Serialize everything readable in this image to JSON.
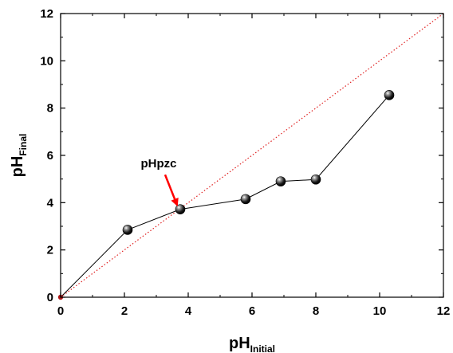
{
  "chart_data": {
    "type": "scatter",
    "xlabel": {
      "main": "pH",
      "sub": "Initial"
    },
    "ylabel": {
      "main": "pH",
      "sub": "Final"
    },
    "xlim": [
      0,
      12
    ],
    "ylim": [
      0,
      12
    ],
    "xticks": [
      0,
      2,
      4,
      6,
      8,
      10,
      12
    ],
    "yticks": [
      0,
      2,
      4,
      6,
      8,
      10,
      12
    ],
    "grid": false,
    "series": [
      {
        "style": "line-with-sphere-markers",
        "color": "#000000",
        "x": [
          0,
          2.1,
          3.75,
          5.8,
          6.9,
          8.0,
          10.3
        ],
        "y": [
          0,
          2.85,
          3.72,
          4.15,
          4.9,
          4.98,
          8.55
        ]
      },
      {
        "style": "dotted-reference",
        "color": "#e02020",
        "x": [
          0,
          12
        ],
        "y": [
          0,
          12
        ]
      }
    ],
    "annotations": [
      {
        "text": "pHpzc",
        "arrow_color": "#ff0000",
        "points_to": [
          3.7,
          3.7
        ]
      }
    ]
  }
}
